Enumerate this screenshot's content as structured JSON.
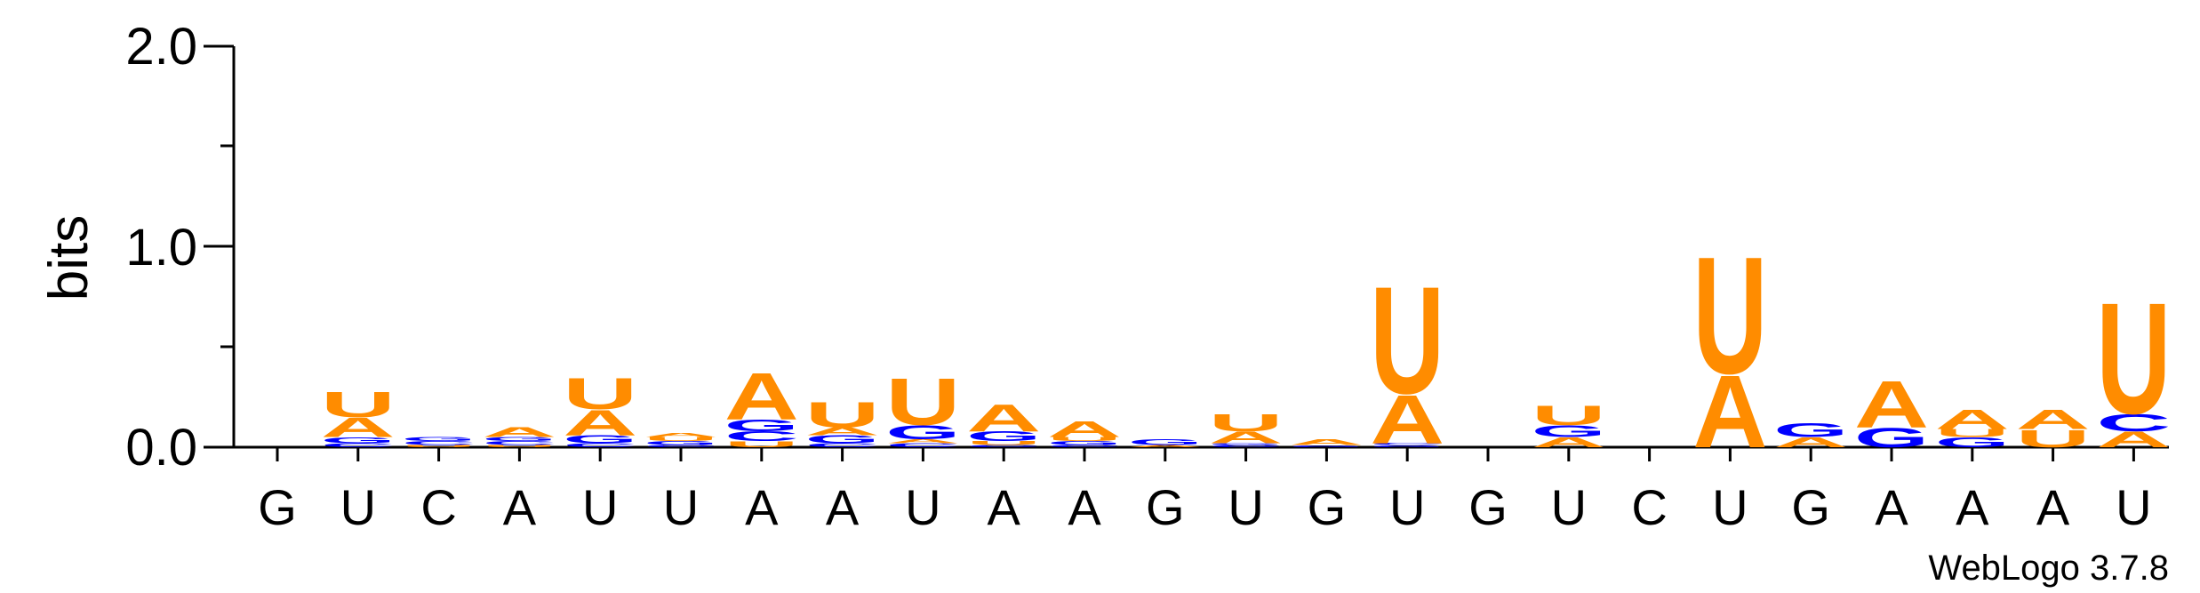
{
  "chart_data": {
    "type": "sequence-logo",
    "ylabel": "bits",
    "ylim": [
      0,
      2.0
    ],
    "yticks": [
      "0.0",
      "1.0",
      "2.0"
    ],
    "positions": [
      "G",
      "U",
      "C",
      "A",
      "U",
      "U",
      "A",
      "A",
      "U",
      "A",
      "A",
      "G",
      "U",
      "G",
      "U",
      "G",
      "U",
      "C",
      "U",
      "G",
      "A",
      "A",
      "A",
      "U"
    ],
    "colors": {
      "A": "#FF8C00",
      "U": "#FF8C00",
      "G": "#0000FF",
      "C": "#0000FF"
    },
    "stacks": [
      [],
      [
        {
          "l": "C",
          "h": 0.02
        },
        {
          "l": "G",
          "h": 0.03
        },
        {
          "l": "A",
          "h": 0.1
        },
        {
          "l": "U",
          "h": 0.13
        }
      ],
      [
        {
          "l": "U",
          "h": 0.01
        },
        {
          "l": "C",
          "h": 0.02
        },
        {
          "l": "G",
          "h": 0.02
        }
      ],
      [
        {
          "l": "U",
          "h": 0.01
        },
        {
          "l": "C",
          "h": 0.02
        },
        {
          "l": "G",
          "h": 0.02
        },
        {
          "l": "A",
          "h": 0.05
        }
      ],
      [
        {
          "l": "C",
          "h": 0.02
        },
        {
          "l": "G",
          "h": 0.04
        },
        {
          "l": "A",
          "h": 0.13
        },
        {
          "l": "U",
          "h": 0.16
        }
      ],
      [
        {
          "l": "C",
          "h": 0.01
        },
        {
          "l": "G",
          "h": 0.02
        },
        {
          "l": "U",
          "h": 0.02
        },
        {
          "l": "A",
          "h": 0.02
        }
      ],
      [
        {
          "l": "U",
          "h": 0.03
        },
        {
          "l": "C",
          "h": 0.05
        },
        {
          "l": "G",
          "h": 0.06
        },
        {
          "l": "A",
          "h": 0.24
        }
      ],
      [
        {
          "l": "C",
          "h": 0.02
        },
        {
          "l": "G",
          "h": 0.04
        },
        {
          "l": "A",
          "h": 0.04
        },
        {
          "l": "U",
          "h": 0.13
        }
      ],
      [
        {
          "l": "C",
          "h": 0.02
        },
        {
          "l": "A",
          "h": 0.02
        },
        {
          "l": "G",
          "h": 0.07
        },
        {
          "l": "U",
          "h": 0.24
        }
      ],
      [
        {
          "l": "C",
          "h": 0.01
        },
        {
          "l": "U",
          "h": 0.02
        },
        {
          "l": "G",
          "h": 0.05
        },
        {
          "l": "A",
          "h": 0.14
        }
      ],
      [
        {
          "l": "C",
          "h": 0.01
        },
        {
          "l": "G",
          "h": 0.02
        },
        {
          "l": "U",
          "h": 0.02
        },
        {
          "l": "A",
          "h": 0.08
        }
      ],
      [
        {
          "l": "A",
          "h": 0.01
        },
        {
          "l": "G",
          "h": 0.03
        }
      ],
      [
        {
          "l": "C",
          "h": 0.01
        },
        {
          "l": "G",
          "h": 0.01
        },
        {
          "l": "A",
          "h": 0.06
        },
        {
          "l": "U",
          "h": 0.09
        }
      ],
      [
        {
          "l": "G",
          "h": 0.01
        },
        {
          "l": "A",
          "h": 0.03
        }
      ],
      [
        {
          "l": "G",
          "h": 0.01
        },
        {
          "l": "C",
          "h": 0.01
        },
        {
          "l": "A",
          "h": 0.25
        },
        {
          "l": "U",
          "h": 0.55
        }
      ],
      [],
      [
        {
          "l": "A",
          "h": 0.05
        },
        {
          "l": "G",
          "h": 0.06
        },
        {
          "l": "U",
          "h": 0.1
        }
      ],
      [],
      [
        {
          "l": "A",
          "h": 0.37
        },
        {
          "l": "U",
          "h": 0.6
        }
      ],
      [
        {
          "l": "A",
          "h": 0.05
        },
        {
          "l": "G",
          "h": 0.07
        }
      ],
      [
        {
          "l": "G",
          "h": 0.1
        },
        {
          "l": "A",
          "h": 0.24
        }
      ],
      [
        {
          "l": "G",
          "h": 0.05
        },
        {
          "l": "U",
          "h": 0.04
        },
        {
          "l": "A",
          "h": 0.1
        }
      ],
      [
        {
          "l": "U",
          "h": 0.09
        },
        {
          "l": "A",
          "h": 0.1
        }
      ],
      [
        {
          "l": "A",
          "h": 0.08
        },
        {
          "l": "C",
          "h": 0.09
        },
        {
          "l": "U",
          "h": 0.57
        }
      ]
    ]
  },
  "credit": "WebLogo 3.7.8"
}
